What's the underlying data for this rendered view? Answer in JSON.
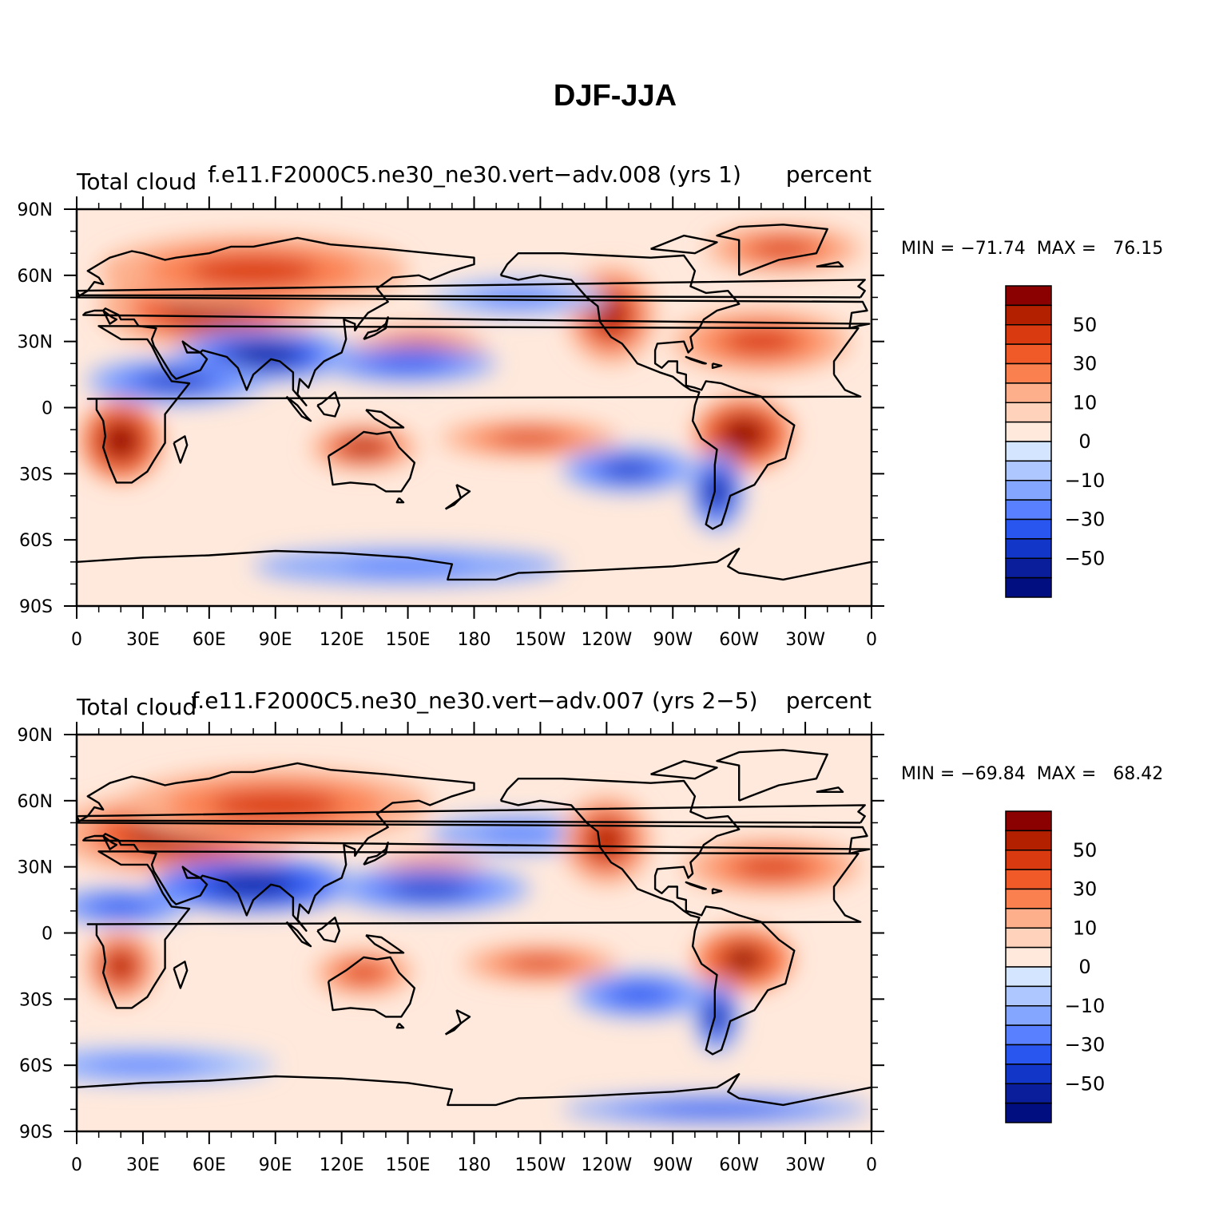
{
  "figure": {
    "title": "DJF-JJA"
  },
  "colors": {
    "coast": "#000000",
    "axis": "#000000"
  },
  "chart_data": [
    {
      "type": "heatmap",
      "projection": "cylindrical-equidistant",
      "case": "f.e11.F2000C5.ne30_ne30.vert−adv.008 (yrs 1)",
      "variable_label": "Total cloud",
      "units_label": "percent",
      "stats_label": "MIN = −71.74  MAX =   76.15",
      "min": -71.74,
      "max": 76.15,
      "x_ticks": [
        "0",
        "30E",
        "60E",
        "90E",
        "120E",
        "150E",
        "180",
        "150W",
        "120W",
        "90W",
        "60W",
        "30W",
        "0"
      ],
      "y_ticks": [
        "90N",
        "60N",
        "30N",
        "0",
        "30S",
        "60S",
        "90S"
      ],
      "xlim": [
        0,
        360
      ],
      "ylim": [
        -90,
        90
      ],
      "colorbar": {
        "levels": [
          -60,
          -50,
          -40,
          -30,
          -20,
          -10,
          -5,
          0,
          5,
          10,
          20,
          30,
          40,
          50,
          60
        ],
        "labels": [
          "50",
          "30",
          "10",
          "0",
          "−10",
          "−30",
          "−50"
        ],
        "colors": [
          "#8B0000",
          "#B22000",
          "#D93A10",
          "#F05A28",
          "#FB8050",
          "#FDAE8A",
          "#FFD2BC",
          "#FFE9DC",
          "#D4E6FF",
          "#AEC8FF",
          "#84A6FF",
          "#5880FF",
          "#2A56F0",
          "#1236C8",
          "#0A1E9C",
          "#000E80"
        ]
      },
      "features": [
        {
          "value": 55,
          "lon": 60,
          "lat": 45,
          "w": 50,
          "h": 18
        },
        {
          "value": 40,
          "lon": 80,
          "lat": 62,
          "w": 70,
          "h": 16
        },
        {
          "value": -55,
          "lon": 85,
          "lat": 24,
          "w": 40,
          "h": 12
        },
        {
          "value": -45,
          "lon": 45,
          "lat": 12,
          "w": 40,
          "h": 10
        },
        {
          "value": 65,
          "lon": 20,
          "lat": -15,
          "w": 18,
          "h": 18
        },
        {
          "value": 55,
          "lon": 130,
          "lat": -18,
          "w": 24,
          "h": 10
        },
        {
          "value": 40,
          "lon": 205,
          "lat": -14,
          "w": 40,
          "h": 8
        },
        {
          "value": 40,
          "lon": 155,
          "lat": 28,
          "w": 30,
          "h": 8
        },
        {
          "value": -40,
          "lon": 150,
          "lat": 20,
          "w": 40,
          "h": 8
        },
        {
          "value": 55,
          "lon": 242,
          "lat": 42,
          "w": 20,
          "h": 22
        },
        {
          "value": 45,
          "lon": 310,
          "lat": 30,
          "w": 40,
          "h": 14
        },
        {
          "value": 65,
          "lon": 302,
          "lat": -12,
          "w": 22,
          "h": 16
        },
        {
          "value": -55,
          "lon": 290,
          "lat": -38,
          "w": 12,
          "h": 18
        },
        {
          "value": -45,
          "lon": 250,
          "lat": -28,
          "w": 30,
          "h": 10
        },
        {
          "value": 40,
          "lon": 320,
          "lat": 72,
          "w": 35,
          "h": 10
        },
        {
          "value": -30,
          "lon": 150,
          "lat": -72,
          "w": 70,
          "h": 8
        },
        {
          "value": -25,
          "lon": 200,
          "lat": 50,
          "w": 40,
          "h": 8
        }
      ]
    },
    {
      "type": "heatmap",
      "projection": "cylindrical-equidistant",
      "case": "f.e11.F2000C5.ne30_ne30.vert−adv.007 (yrs 2−5)",
      "variable_label": "Total cloud",
      "units_label": "percent",
      "stats_label": "MIN = −69.84  MAX =   68.42",
      "min": -69.84,
      "max": 68.42,
      "x_ticks": [
        "0",
        "30E",
        "60E",
        "90E",
        "120E",
        "150E",
        "180",
        "150W",
        "120W",
        "90W",
        "60W",
        "30W",
        "0"
      ],
      "y_ticks": [
        "90N",
        "60N",
        "30N",
        "0",
        "30S",
        "60S",
        "90S"
      ],
      "xlim": [
        0,
        360
      ],
      "ylim": [
        -90,
        90
      ],
      "colorbar": {
        "levels": [
          -60,
          -50,
          -40,
          -30,
          -20,
          -10,
          -5,
          0,
          5,
          10,
          20,
          30,
          40,
          50,
          60
        ],
        "labels": [
          "50",
          "30",
          "10",
          "0",
          "−10",
          "−30",
          "−50"
        ],
        "colors": [
          "#8B0000",
          "#B22000",
          "#D93A10",
          "#F05A28",
          "#FB8050",
          "#FDAE8A",
          "#FFD2BC",
          "#FFE9DC",
          "#D4E6FF",
          "#AEC8FF",
          "#84A6FF",
          "#5880FF",
          "#2A56F0",
          "#1236C8",
          "#0A1E9C",
          "#000E80"
        ]
      },
      "features": [
        {
          "value": 55,
          "lon": 45,
          "lat": 45,
          "w": 55,
          "h": 18
        },
        {
          "value": 40,
          "lon": 90,
          "lat": 58,
          "w": 70,
          "h": 16
        },
        {
          "value": -60,
          "lon": 80,
          "lat": 22,
          "w": 45,
          "h": 12
        },
        {
          "value": -40,
          "lon": 20,
          "lat": 12,
          "w": 30,
          "h": 8
        },
        {
          "value": 55,
          "lon": 20,
          "lat": -15,
          "w": 16,
          "h": 16
        },
        {
          "value": 40,
          "lon": 130,
          "lat": -18,
          "w": 22,
          "h": 10
        },
        {
          "value": 40,
          "lon": 210,
          "lat": -14,
          "w": 35,
          "h": 8
        },
        {
          "value": 35,
          "lon": 160,
          "lat": 30,
          "w": 25,
          "h": 6
        },
        {
          "value": -45,
          "lon": 160,
          "lat": 20,
          "w": 45,
          "h": 10
        },
        {
          "value": -30,
          "lon": 200,
          "lat": 45,
          "w": 40,
          "h": 8
        },
        {
          "value": 55,
          "lon": 240,
          "lat": 42,
          "w": 20,
          "h": 20
        },
        {
          "value": 45,
          "lon": 315,
          "lat": 30,
          "w": 40,
          "h": 12
        },
        {
          "value": 60,
          "lon": 302,
          "lat": -12,
          "w": 22,
          "h": 14
        },
        {
          "value": -55,
          "lon": 290,
          "lat": -38,
          "w": 10,
          "h": 16
        },
        {
          "value": -40,
          "lon": 255,
          "lat": -28,
          "w": 30,
          "h": 10
        },
        {
          "value": -25,
          "lon": 30,
          "lat": -60,
          "w": 60,
          "h": 8
        },
        {
          "value": -35,
          "lon": 290,
          "lat": -80,
          "w": 70,
          "h": 6
        }
      ]
    }
  ],
  "coastlines": [
    [
      [
        -17,
        15
      ],
      [
        -12,
        8
      ],
      [
        -5,
        5
      ],
      [
        5,
        4
      ],
      [
        9,
        4
      ],
      [
        9,
        -1
      ],
      [
        12,
        -6
      ],
      [
        13,
        -13
      ],
      [
        12,
        -18
      ],
      [
        15,
        -27
      ],
      [
        18,
        -34
      ],
      [
        25,
        -34
      ],
      [
        32,
        -29
      ],
      [
        35,
        -24
      ],
      [
        40,
        -16
      ],
      [
        40,
        -10
      ],
      [
        40,
        -3
      ],
      [
        51,
        11
      ],
      [
        43,
        12
      ],
      [
        39,
        18
      ],
      [
        34,
        28
      ],
      [
        32,
        31
      ],
      [
        20,
        31
      ],
      [
        10,
        37
      ],
      [
        -6,
        36
      ],
      [
        -17,
        21
      ],
      [
        -17,
        15
      ]
    ],
    [
      [
        44,
        -16
      ],
      [
        47,
        -25
      ],
      [
        50,
        -17
      ],
      [
        49,
        -13
      ],
      [
        44,
        -16
      ]
    ],
    [
      [
        -10,
        36
      ],
      [
        -9,
        43
      ],
      [
        -2,
        44
      ],
      [
        -4,
        48
      ],
      [
        0,
        50
      ],
      [
        5,
        53
      ],
      [
        8,
        57
      ],
      [
        12,
        56
      ],
      [
        10,
        59
      ],
      [
        5,
        62
      ],
      [
        15,
        68
      ],
      [
        25,
        71
      ],
      [
        30,
        70
      ],
      [
        40,
        67
      ],
      [
        45,
        68
      ],
      [
        60,
        70
      ],
      [
        70,
        73
      ],
      [
        80,
        73
      ],
      [
        100,
        77
      ],
      [
        115,
        74
      ],
      [
        140,
        72
      ],
      [
        160,
        70
      ],
      [
        180,
        68
      ],
      [
        180,
        65
      ],
      [
        170,
        62
      ],
      [
        160,
        58
      ],
      [
        155,
        60
      ],
      [
        143,
        59
      ],
      [
        136,
        54
      ],
      [
        141,
        48
      ],
      [
        132,
        43
      ],
      [
        128,
        38
      ],
      [
        126,
        35
      ],
      [
        126,
        38
      ],
      [
        121,
        40
      ],
      [
        122,
        31
      ],
      [
        120,
        25
      ],
      [
        112,
        21
      ],
      [
        108,
        17
      ],
      [
        105,
        9
      ],
      [
        101,
        13
      ],
      [
        100,
        6
      ],
      [
        104,
        1
      ],
      [
        98,
        8
      ],
      [
        98,
        16
      ],
      [
        92,
        21
      ],
      [
        88,
        22
      ],
      [
        80,
        15
      ],
      [
        77,
        8
      ],
      [
        73,
        18
      ],
      [
        68,
        23
      ],
      [
        57,
        26
      ],
      [
        56,
        25
      ],
      [
        52,
        27
      ],
      [
        48,
        30
      ],
      [
        50,
        25
      ],
      [
        56,
        25
      ],
      [
        59,
        22
      ],
      [
        56,
        17
      ],
      [
        45,
        13
      ],
      [
        43,
        15
      ],
      [
        35,
        28
      ],
      [
        34,
        31
      ],
      [
        36,
        36
      ],
      [
        28,
        37
      ],
      [
        26,
        40
      ],
      [
        22,
        40
      ],
      [
        20,
        40
      ],
      [
        19,
        42
      ],
      [
        13,
        45
      ],
      [
        12,
        44
      ],
      [
        16,
        41
      ],
      [
        18,
        40
      ],
      [
        15,
        38
      ],
      [
        12,
        44
      ],
      [
        8,
        44
      ],
      [
        4,
        43
      ],
      [
        3,
        42
      ],
      [
        -1,
        38
      ],
      [
        -6,
        37
      ],
      [
        -10,
        36
      ]
    ],
    [
      [
        -5,
        50
      ],
      [
        -3,
        53
      ],
      [
        -6,
        55
      ],
      [
        -3,
        58
      ],
      [
        0,
        53
      ],
      [
        1,
        51
      ],
      [
        -5,
        50
      ]
    ],
    [
      [
        130,
        31
      ],
      [
        132,
        34
      ],
      [
        136,
        35
      ],
      [
        140,
        38
      ],
      [
        141,
        41
      ],
      [
        140,
        36
      ],
      [
        135,
        33
      ],
      [
        130,
        31
      ]
    ],
    [
      [
        95,
        5
      ],
      [
        100,
        1
      ],
      [
        104,
        -4
      ],
      [
        106,
        -6
      ],
      [
        102,
        -4
      ],
      [
        98,
        1
      ],
      [
        95,
        5
      ]
    ],
    [
      [
        109,
        1
      ],
      [
        112,
        -3
      ],
      [
        117,
        -4
      ],
      [
        119,
        1
      ],
      [
        117,
        7
      ],
      [
        111,
        2
      ],
      [
        109,
        1
      ]
    ],
    [
      [
        131,
        -1
      ],
      [
        138,
        -2
      ],
      [
        148,
        -9
      ],
      [
        142,
        -9
      ],
      [
        135,
        -5
      ],
      [
        131,
        -1
      ]
    ],
    [
      [
        114,
        -22
      ],
      [
        116,
        -35
      ],
      [
        124,
        -34
      ],
      [
        135,
        -35
      ],
      [
        140,
        -38
      ],
      [
        147,
        -38
      ],
      [
        151,
        -32
      ],
      [
        153,
        -25
      ],
      [
        146,
        -18
      ],
      [
        142,
        -11
      ],
      [
        136,
        -12
      ],
      [
        130,
        -11
      ],
      [
        122,
        -17
      ],
      [
        114,
        -22
      ]
    ],
    [
      [
        146,
        -41
      ],
      [
        148,
        -43
      ],
      [
        145,
        -43
      ],
      [
        146,
        -41
      ]
    ],
    [
      [
        172,
        -35
      ],
      [
        178,
        -38
      ],
      [
        174,
        -41
      ],
      [
        172,
        -35
      ]
    ],
    [
      [
        167,
        -46
      ],
      [
        174,
        -41
      ],
      [
        171,
        -44
      ],
      [
        167,
        -46
      ]
    ],
    [
      [
        192,
        60
      ],
      [
        195,
        65
      ],
      [
        200,
        70
      ],
      [
        220,
        70
      ],
      [
        240,
        69
      ],
      [
        260,
        68
      ],
      [
        275,
        69
      ],
      [
        280,
        62
      ],
      [
        278,
        55
      ],
      [
        285,
        52
      ],
      [
        295,
        53
      ],
      [
        300,
        47
      ],
      [
        290,
        44
      ],
      [
        284,
        40
      ],
      [
        282,
        36
      ],
      [
        278,
        32
      ],
      [
        279,
        27
      ],
      [
        277,
        25
      ],
      [
        275,
        30
      ],
      [
        263,
        29
      ],
      [
        262,
        26
      ],
      [
        262,
        20
      ],
      [
        265,
        18
      ],
      [
        268,
        21
      ],
      [
        272,
        21
      ],
      [
        272,
        16
      ],
      [
        276,
        15
      ],
      [
        276,
        10
      ],
      [
        280,
        9
      ],
      [
        283,
        8
      ],
      [
        285,
        12
      ],
      [
        292,
        11
      ],
      [
        300,
        8
      ],
      [
        310,
        5
      ],
      [
        318,
        -3
      ],
      [
        325,
        -8
      ],
      [
        321,
        -23
      ],
      [
        313,
        -26
      ],
      [
        307,
        -35
      ],
      [
        296,
        -40
      ],
      [
        294,
        -47
      ],
      [
        292,
        -53
      ],
      [
        288,
        -55
      ],
      [
        285,
        -53
      ],
      [
        287,
        -45
      ],
      [
        289,
        -38
      ],
      [
        289,
        -26
      ],
      [
        290,
        -19
      ],
      [
        283,
        -14
      ],
      [
        279,
        -6
      ],
      [
        280,
        1
      ],
      [
        282,
        7
      ],
      [
        278,
        8
      ],
      [
        275,
        10
      ],
      [
        270,
        14
      ],
      [
        264,
        16
      ],
      [
        254,
        20
      ],
      [
        251,
        24
      ],
      [
        247,
        29
      ],
      [
        242,
        32
      ],
      [
        237,
        39
      ],
      [
        236,
        46
      ],
      [
        231,
        50
      ],
      [
        224,
        58
      ],
      [
        210,
        60
      ],
      [
        200,
        58
      ],
      [
        192,
        60
      ]
    ],
    [
      [
        284,
        20
      ],
      [
        278,
        22
      ],
      [
        276,
        23
      ],
      [
        285,
        20
      ],
      [
        284,
        20
      ]
    ],
    [
      [
        288,
        20
      ],
      [
        292,
        19
      ],
      [
        288,
        18
      ],
      [
        288,
        20
      ]
    ],
    [
      [
        300,
        60
      ],
      [
        305,
        62
      ],
      [
        318,
        67
      ],
      [
        335,
        70
      ],
      [
        340,
        81
      ],
      [
        320,
        83
      ],
      [
        300,
        82
      ],
      [
        290,
        78
      ],
      [
        300,
        76
      ],
      [
        300,
        60
      ]
    ],
    [
      [
        260,
        72
      ],
      [
        280,
        70
      ],
      [
        290,
        75
      ],
      [
        275,
        78
      ],
      [
        260,
        72
      ]
    ],
    [
      [
        -25,
        64
      ],
      [
        -15,
        66
      ],
      [
        -13,
        64
      ],
      [
        -25,
        64
      ]
    ],
    [
      [
        0,
        -70
      ],
      [
        30,
        -68
      ],
      [
        60,
        -67
      ],
      [
        90,
        -65
      ],
      [
        120,
        -66
      ],
      [
        150,
        -68
      ],
      [
        170,
        -71
      ],
      [
        168,
        -78
      ],
      [
        190,
        -78
      ],
      [
        200,
        -75
      ],
      [
        230,
        -74
      ],
      [
        250,
        -73
      ],
      [
        270,
        -72
      ],
      [
        290,
        -70
      ],
      [
        300,
        -64
      ],
      [
        295,
        -72
      ],
      [
        300,
        -75
      ],
      [
        320,
        -78
      ],
      [
        340,
        -74
      ],
      [
        360,
        -70
      ]
    ]
  ]
}
